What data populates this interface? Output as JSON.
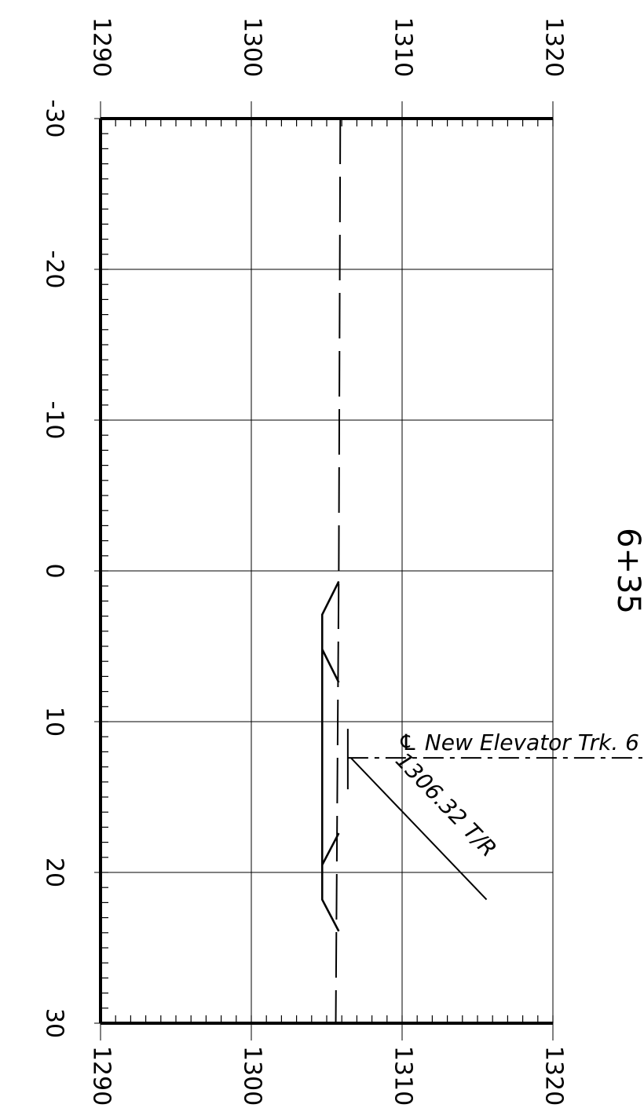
{
  "station_label": "6+35",
  "elevation_axis": {
    "ticks": [
      1290,
      1300,
      1310,
      1320
    ],
    "range": [
      1290,
      1320
    ]
  },
  "offset_axis": {
    "ticks": [
      -30,
      -20,
      -10,
      0,
      10,
      20,
      30
    ],
    "range": [
      -30,
      30
    ]
  },
  "ground_line": {
    "style": "dashed",
    "points": [
      [
        -30,
        1305.9
      ],
      [
        0,
        1305.8
      ],
      [
        30,
        1305.6
      ]
    ]
  },
  "track_section": {
    "outline": [
      [
        0.7,
        1305.8
      ],
      [
        2.9,
        1304.7
      ],
      [
        21.8,
        1304.7
      ],
      [
        23.9,
        1305.8
      ]
    ],
    "ties": [
      [
        [
          5.2,
          1304.7
        ],
        [
          7.4,
          1305.8
        ]
      ],
      [
        [
          19.5,
          1304.7
        ],
        [
          17.4,
          1305.8
        ]
      ]
    ]
  },
  "centerline": {
    "label": "℄ New Elevator Trk. 6",
    "offset": 12.4,
    "elevation": 1306.4
  },
  "callout": {
    "label": "1306.32 T/R",
    "from": [
      12.4,
      1306.6
    ],
    "to": [
      21.8,
      1315.6
    ]
  },
  "colors": {
    "line": "#000000",
    "grid": "#000000",
    "background": "#ffffff"
  }
}
